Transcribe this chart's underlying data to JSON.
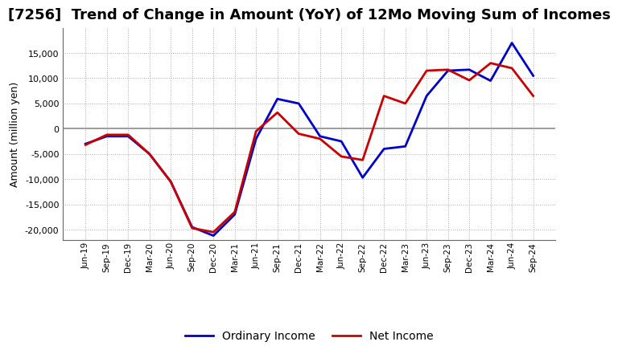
{
  "title": "[7256]  Trend of Change in Amount (YoY) of 12Mo Moving Sum of Incomes",
  "ylabel": "Amount (million yen)",
  "background_color": "#ffffff",
  "grid_color": "#aaaaaa",
  "zero_line_color": "#888888",
  "labels": [
    "Jun-19",
    "Sep-19",
    "Dec-19",
    "Mar-20",
    "Jun-20",
    "Sep-20",
    "Dec-20",
    "Mar-21",
    "Jun-21",
    "Sep-21",
    "Dec-21",
    "Mar-22",
    "Jun-22",
    "Sep-22",
    "Dec-22",
    "Mar-23",
    "Jun-23",
    "Sep-23",
    "Dec-23",
    "Mar-24",
    "Jun-24",
    "Sep-24"
  ],
  "ordinary_income": [
    -3000,
    -1500,
    -1500,
    -5000,
    -10500,
    -19500,
    -21200,
    -17000,
    -2000,
    5900,
    5000,
    -1500,
    -2500,
    -9700,
    -4000,
    -3500,
    6500,
    11500,
    11700,
    9500,
    17000,
    10500
  ],
  "net_income": [
    -3200,
    -1200,
    -1200,
    -5000,
    -10500,
    -19700,
    -20500,
    -16500,
    -500,
    3200,
    -1000,
    -2000,
    -5500,
    -6200,
    6500,
    5000,
    11500,
    11700,
    9600,
    13000,
    12000,
    6500
  ],
  "ordinary_color": "#0000cc",
  "net_color": "#cc0000",
  "ylim": [
    -22000,
    20000
  ],
  "yticks": [
    -20000,
    -15000,
    -10000,
    -5000,
    0,
    5000,
    10000,
    15000
  ],
  "line_width": 2.0,
  "title_fontsize": 13,
  "legend_fontsize": 10
}
